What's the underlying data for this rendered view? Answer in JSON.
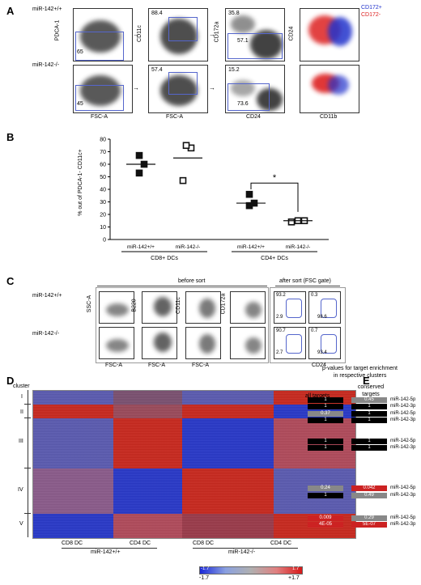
{
  "panel_a": {
    "label": "A",
    "row1": "miR-142+/+",
    "row2": "miR-142-/-",
    "y_pdca": "PDCA-1",
    "y_cd11c": "CD11c",
    "y_cd172": "CD172a",
    "y_cd24": "CD24",
    "x_fsc1": "FSC-A",
    "x_fsc2": "FSC-A",
    "x_cd24": "CD24",
    "x_cd11b": "CD11b",
    "legend_pos": "CD172+",
    "legend_neg": "CD172-",
    "pos_color": "#2233cc",
    "neg_color": "#dd2222",
    "r1_v65": "65",
    "r1_v884": "88.4",
    "r1_v358": "35.8",
    "r1_v571": "57.1",
    "r2_v45": "45",
    "r2_v574": "57.4",
    "r2_v152": "15.2",
    "r2_v736": "73.6"
  },
  "panel_b": {
    "label": "B",
    "ylabel": "% out of PDCA-1- CD11c+",
    "x1": "miR-142+/+",
    "x2": "miR-142-/-",
    "x3": "miR-142+/+",
    "x4": "miR-142-/-",
    "group1": "CD8+ DCs",
    "group2": "CD4+ DCs",
    "star": "*",
    "yticks": [
      "0",
      "10",
      "20",
      "30",
      "40",
      "50",
      "60",
      "70",
      "80"
    ]
  },
  "chart_data": {
    "type": "scatter",
    "categories": [
      "miR-142+/+ CD8+ DCs",
      "miR-142-/- CD8+ DCs",
      "miR-142+/+ CD4+ DCs",
      "miR-142-/- CD4+ DCs"
    ],
    "ylabel": "% out of PDCA-1- CD11c+",
    "ylim": [
      0,
      80
    ],
    "series": [
      {
        "values": [
          [
            53,
            60,
            67
          ],
          [
            47,
            73,
            75
          ],
          [
            27,
            29,
            36
          ],
          [
            14,
            15,
            15
          ]
        ],
        "means": [
          60,
          65,
          29,
          15
        ]
      }
    ]
  },
  "panel_c": {
    "label": "C",
    "before": "before sort",
    "after": "after sort (FSC gate)",
    "row1": "miR-142+/+",
    "row2": "miR-142-/-",
    "y_ssc": "SSC-A",
    "y_b220": "B220",
    "y_cd11c": "CD11c",
    "y_cd172": "CD172a",
    "x_fsc1": "FSC-A",
    "x_fsc2": "FSC-A",
    "x_fsc3": "FSC-A",
    "x_cd24": "CD24",
    "r1_a": "93.2",
    "r1_b": "2.9",
    "r1_c": "0.3",
    "r1_d": "98.6",
    "r2_a": "90.7",
    "r2_b": "2.7",
    "r2_c": "0.7",
    "r2_d": "93.4"
  },
  "panel_d": {
    "label": "D",
    "cluster": "cluster",
    "clusters": [
      "I",
      "II",
      "III",
      "IV",
      "V"
    ],
    "cd8_1": "CD8 DC",
    "cd4_1": "CD4 DC",
    "cd8_2": "CD8 DC",
    "cd4_2": "CD4 DC",
    "wt": "miR-142+/+",
    "ko": "miR-142-/-",
    "scale_min": "-1.7",
    "scale_max": "+1.7",
    "scale_small_min": "-1.7",
    "scale_small_max": "1.7"
  },
  "panel_e": {
    "label": "E",
    "title1": "p-values for target enrichment",
    "title2": "in respective clusters",
    "col_all": "all targets",
    "col_cons": "conserved targets",
    "rows": [
      {
        "a": "1",
        "c": "0.45",
        "mir": "miR-142-5p"
      },
      {
        "a": "1",
        "c": "1",
        "mir": "miR-142-3p"
      },
      {
        "a": "0.37",
        "c": "1",
        "mir": "miR-142-5p"
      },
      {
        "a": "1",
        "c": "1",
        "mir": "miR-142-3p"
      },
      {
        "a": "1",
        "c": "1",
        "mir": "miR-142-5p"
      },
      {
        "a": "1",
        "c": "1",
        "mir": "miR-142-3p"
      },
      {
        "a": "0.24",
        "c": "0.042",
        "mir": "miR-142-5p"
      },
      {
        "a": "1",
        "c": "0.49",
        "mir": "miR-142-3p"
      },
      {
        "a": "0.009",
        "c": "0.29",
        "mir": "miR-142-5p"
      },
      {
        "a": "4E-05",
        "c": "5E-07",
        "mir": "miR-142-3p"
      }
    ]
  }
}
